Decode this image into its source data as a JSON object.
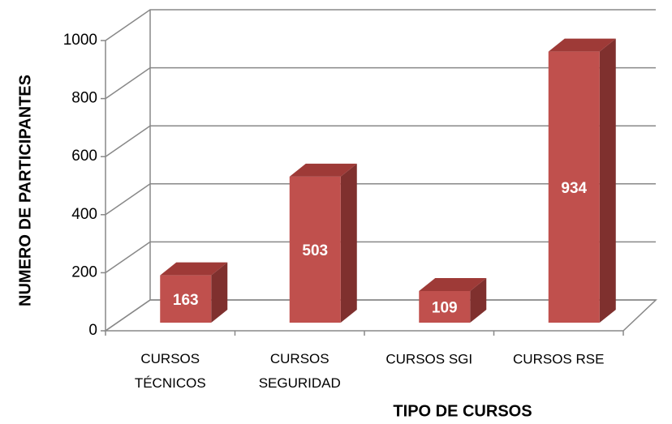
{
  "chart_data": {
    "type": "bar3d",
    "categories": [
      "CURSOS\nTÉCNICOS",
      "CURSOS\nSEGURIDAD",
      "CURSOS  SGI",
      "CURSOS  RSE"
    ],
    "values": [
      163,
      503,
      109,
      934
    ],
    "color": "#c0504d",
    "ylim": [
      0,
      1000
    ],
    "yticks": [
      0,
      200,
      400,
      600,
      800,
      1000
    ],
    "grid": true,
    "x_label": "TIPO DE CURSOS",
    "y_label": "NUMERO DE  PARTICIPANTES"
  }
}
